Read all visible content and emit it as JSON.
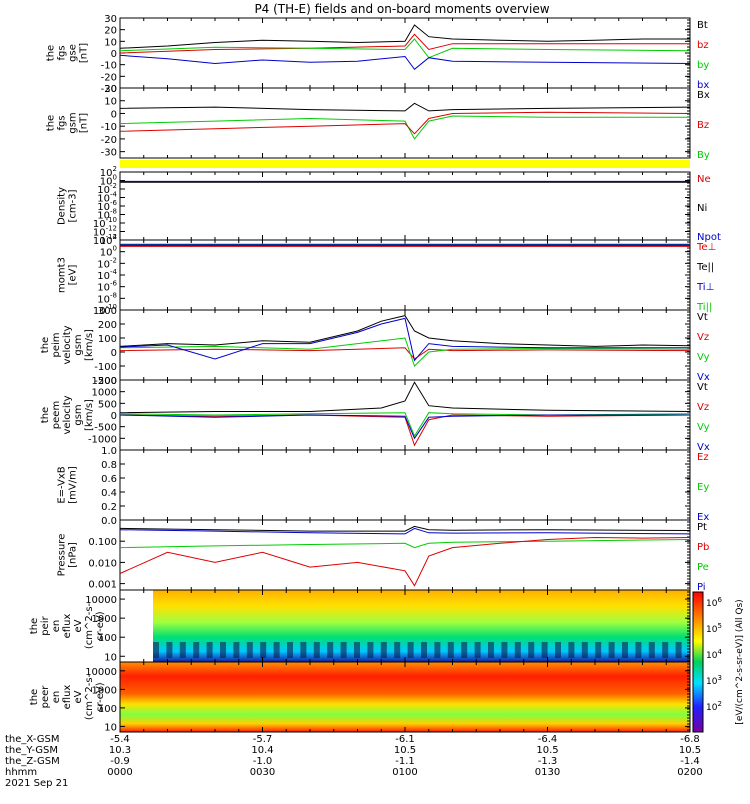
{
  "title": "P4 (TH-E) fields and on-board moments overview",
  "footer": {
    "row_labels": [
      "the_X-GSM",
      "the_Y-GSM",
      "the_Z-GSM",
      "hhmm",
      "2021 Sep 21"
    ],
    "columns": [
      {
        "values": [
          "-5.4",
          "10.3",
          "-0.9",
          "0000"
        ]
      },
      {
        "values": [
          "-5.7",
          "10.4",
          "-1.0",
          "0030"
        ]
      },
      {
        "values": [
          "-6.1",
          "10.5",
          "-1.1",
          "0100"
        ]
      },
      {
        "values": [
          "-6.4",
          "10.5",
          "-1.3",
          "0130"
        ]
      },
      {
        "values": [
          "-6.8",
          "10.5",
          "-1.4",
          "0200"
        ]
      }
    ]
  },
  "colorbar": {
    "title": "[eV/(cm^2-s-sr-eV)] (All Qs)",
    "ticks": [
      {
        "base": "10",
        "exp": "6"
      },
      {
        "base": "10",
        "exp": "5"
      },
      {
        "base": "10",
        "exp": "4"
      },
      {
        "base": "10",
        "exp": "3"
      },
      {
        "base": "10",
        "exp": "2"
      }
    ]
  },
  "chart_data": [
    {
      "id": "fgs_gse",
      "type": "line",
      "ylabel_lines": [
        "the",
        "fgs",
        "gse",
        "[nT]"
      ],
      "ylim": [
        -30,
        30
      ],
      "yticks": [
        "30",
        "20",
        "10",
        "0",
        "-10",
        "-20",
        "-30"
      ],
      "legend": [
        {
          "name": "Bt",
          "color": "#000000"
        },
        {
          "name": "bz",
          "color": "#dd0000"
        },
        {
          "name": "by",
          "color": "#00cc00"
        },
        {
          "name": "bx",
          "color": "#0000cc"
        }
      ],
      "series": [
        {
          "name": "Bt",
          "color": "#000000",
          "x": [
            0,
            10,
            20,
            30,
            40,
            50,
            60,
            62,
            65,
            70,
            80,
            90,
            100,
            110,
            120
          ],
          "y": [
            4,
            6,
            9,
            11,
            10,
            9,
            10,
            24,
            14,
            12,
            11,
            10,
            11,
            12,
            12
          ]
        },
        {
          "name": "bz",
          "color": "#dd0000",
          "x": [
            0,
            20,
            40,
            60,
            62,
            65,
            70,
            90,
            120
          ],
          "y": [
            0,
            3,
            4,
            6,
            16,
            3,
            8,
            8,
            8
          ]
        },
        {
          "name": "by",
          "color": "#00cc00",
          "x": [
            0,
            20,
            40,
            60,
            62,
            65,
            70,
            90,
            120
          ],
          "y": [
            2,
            5,
            4,
            3,
            12,
            -4,
            4,
            3,
            2
          ]
        },
        {
          "name": "bx",
          "color": "#0000cc",
          "x": [
            0,
            10,
            20,
            30,
            40,
            50,
            60,
            62,
            65,
            70,
            90,
            120
          ],
          "y": [
            -2,
            -5,
            -9,
            -6,
            -8,
            -7,
            -3,
            -14,
            -4,
            -7,
            -8,
            -9
          ]
        }
      ]
    },
    {
      "id": "fgs_gsm",
      "type": "line",
      "ylabel_lines": [
        "the",
        "fgs",
        "gsm",
        "[nT]"
      ],
      "ylim": [
        -35,
        20
      ],
      "yticks": [
        "20",
        "10",
        "0",
        "-10",
        "-20",
        "-30"
      ],
      "legend": [
        {
          "name": "Bx",
          "color": "#000000"
        },
        {
          "name": "Bz",
          "color": "#dd0000"
        },
        {
          "name": "By",
          "color": "#00cc00"
        }
      ],
      "series": [
        {
          "name": "Bx",
          "color": "#000000",
          "x": [
            0,
            20,
            40,
            60,
            62,
            65,
            70,
            90,
            120
          ],
          "y": [
            4,
            5,
            3,
            2,
            8,
            2,
            3,
            4,
            5
          ]
        },
        {
          "name": "By",
          "color": "#00cc00",
          "x": [
            0,
            20,
            40,
            60,
            62,
            65,
            70,
            90,
            120
          ],
          "y": [
            -8,
            -6,
            -4,
            -6,
            -20,
            -6,
            -2,
            -3,
            -3
          ]
        },
        {
          "name": "Bz",
          "color": "#dd0000",
          "x": [
            0,
            20,
            40,
            60,
            62,
            65,
            70,
            90,
            120
          ],
          "y": [
            -14,
            -12,
            -10,
            -8,
            -16,
            -4,
            0,
            1,
            0
          ]
        }
      ]
    },
    {
      "id": "density",
      "type": "line",
      "yscale": "log",
      "ylabel_lines": [
        "Density",
        "[cm-3]"
      ],
      "ylim": [
        1e-14,
        100.0
      ],
      "yticks": [
        {
          "base": "10",
          "exp": "2"
        },
        {
          "base": "10",
          "exp": "0"
        },
        {
          "base": "10",
          "exp": "-2"
        },
        {
          "base": "10",
          "exp": "-4"
        },
        {
          "base": "10",
          "exp": "-6"
        },
        {
          "base": "10",
          "exp": "-8"
        },
        {
          "base": "10",
          "exp": "-10"
        },
        {
          "base": "10",
          "exp": "-12"
        },
        {
          "base": "10",
          "exp": "-14"
        }
      ],
      "legend": [
        {
          "name": "Ne",
          "color": "#dd0000"
        },
        {
          "name": "Ni",
          "color": "#000000"
        },
        {
          "name": "Npot",
          "color": "#0000cc"
        }
      ],
      "series": [
        {
          "name": "Ne",
          "color": "#dd0000",
          "x": [
            0,
            120
          ],
          "y": [
            0.5,
            0.5
          ]
        },
        {
          "name": "Ni",
          "color": "#000000",
          "x": [
            0,
            120
          ],
          "y": [
            0.4,
            0.4
          ]
        },
        {
          "name": "Npot",
          "color": "#0000cc",
          "x": [
            0,
            120
          ],
          "y": [
            0.6,
            0.6
          ]
        }
      ]
    },
    {
      "id": "momt3",
      "type": "line",
      "yscale": "log",
      "ylabel_lines": [
        "momt3",
        "[eV]"
      ],
      "ylim": [
        1e-10,
        100.0
      ],
      "yticks": [
        {
          "base": "10",
          "exp": "2"
        },
        {
          "base": "10",
          "exp": "0"
        },
        {
          "base": "10",
          "exp": "-2"
        },
        {
          "base": "10",
          "exp": "-4"
        },
        {
          "base": "10",
          "exp": "-6"
        },
        {
          "base": "10",
          "exp": "-8"
        },
        {
          "base": "10",
          "exp": "-10"
        }
      ],
      "legend": [
        {
          "name": "Te⊥",
          "color": "#dd0000"
        },
        {
          "name": "Te||",
          "color": "#000000"
        },
        {
          "name": "Ti⊥",
          "color": "#0000cc"
        },
        {
          "name": "Ti||",
          "color": "#00cc00"
        }
      ],
      "series": [
        {
          "name": "Ti||",
          "color": "#00cc00",
          "x": [
            0,
            120
          ],
          "y": [
            20,
            20
          ]
        },
        {
          "name": "Te||",
          "color": "#000000",
          "x": [
            0,
            120
          ],
          "y": [
            12,
            12
          ]
        },
        {
          "name": "Ti⊥",
          "color": "#0000cc",
          "x": [
            0,
            120
          ],
          "y": [
            15,
            15
          ]
        },
        {
          "name": "Te⊥",
          "color": "#dd0000",
          "x": [
            0,
            120
          ],
          "y": [
            8,
            8
          ]
        }
      ]
    },
    {
      "id": "peim_velocity",
      "type": "line",
      "ylabel_lines": [
        "the",
        "peim",
        "velocity",
        "gsm",
        "[km/s]"
      ],
      "ylim": [
        -200,
        300
      ],
      "yticks": [
        "300",
        "200",
        "100",
        "0",
        "-100",
        "-200"
      ],
      "legend": [
        {
          "name": "Vt",
          "color": "#000000"
        },
        {
          "name": "Vz",
          "color": "#dd0000"
        },
        {
          "name": "Vy",
          "color": "#00cc00"
        },
        {
          "name": "Vx",
          "color": "#0000cc"
        }
      ],
      "series": [
        {
          "name": "Vt",
          "color": "#000000",
          "x": [
            0,
            10,
            20,
            30,
            40,
            50,
            55,
            60,
            62,
            65,
            70,
            80,
            90,
            100,
            110,
            120
          ],
          "y": [
            40,
            60,
            50,
            80,
            70,
            150,
            220,
            260,
            150,
            100,
            80,
            60,
            50,
            40,
            50,
            45
          ]
        },
        {
          "name": "Vz",
          "color": "#dd0000",
          "x": [
            0,
            20,
            40,
            60,
            62,
            65,
            70,
            90,
            120
          ],
          "y": [
            10,
            20,
            10,
            30,
            -50,
            20,
            10,
            15,
            10
          ]
        },
        {
          "name": "Vy",
          "color": "#00cc00",
          "x": [
            0,
            20,
            40,
            60,
            62,
            65,
            70,
            90,
            120
          ],
          "y": [
            30,
            40,
            20,
            100,
            -100,
            0,
            20,
            25,
            20
          ]
        },
        {
          "name": "Vx",
          "color": "#0000cc",
          "x": [
            0,
            10,
            20,
            30,
            40,
            50,
            55,
            60,
            62,
            65,
            70,
            90,
            120
          ],
          "y": [
            35,
            50,
            -50,
            60,
            60,
            140,
            200,
            240,
            -60,
            60,
            40,
            30,
            30
          ]
        }
      ]
    },
    {
      "id": "peem_velocity",
      "type": "line",
      "ylabel_lines": [
        "the",
        "peem",
        "velocity",
        "gsm",
        "[km/s]"
      ],
      "ylim": [
        -1500,
        1500
      ],
      "yticks": [
        "1500",
        "1000",
        "500",
        "0",
        "-500",
        "-1000"
      ],
      "legend": [
        {
          "name": "Vt",
          "color": "#000000"
        },
        {
          "name": "Vz",
          "color": "#dd0000"
        },
        {
          "name": "Vy",
          "color": "#00cc00"
        },
        {
          "name": "Vx",
          "color": "#0000cc"
        }
      ],
      "series": [
        {
          "name": "Vt",
          "color": "#000000",
          "x": [
            0,
            20,
            40,
            55,
            60,
            62,
            65,
            70,
            90,
            120
          ],
          "y": [
            100,
            150,
            150,
            300,
            600,
            1400,
            400,
            300,
            200,
            150
          ]
        },
        {
          "name": "Vz",
          "color": "#dd0000",
          "x": [
            0,
            20,
            40,
            60,
            62,
            65,
            70,
            90,
            120
          ],
          "y": [
            0,
            -50,
            0,
            -100,
            -1300,
            -200,
            0,
            -50,
            0
          ]
        },
        {
          "name": "Vy",
          "color": "#00cc00",
          "x": [
            0,
            20,
            40,
            60,
            62,
            65,
            70,
            90,
            120
          ],
          "y": [
            50,
            0,
            50,
            100,
            -900,
            100,
            50,
            0,
            50
          ]
        },
        {
          "name": "Vx",
          "color": "#0000cc",
          "x": [
            0,
            20,
            40,
            60,
            62,
            65,
            70,
            90,
            120
          ],
          "y": [
            0,
            -100,
            0,
            -50,
            -1000,
            -100,
            -50,
            0,
            0
          ]
        }
      ]
    },
    {
      "id": "efield",
      "type": "line",
      "ylabel_lines": [
        "E=-VxB",
        "[mV/m]"
      ],
      "ylim": [
        0,
        1
      ],
      "yticks": [
        "1.0",
        "0.8",
        "0.6",
        "0.4",
        "0.2",
        "0.0"
      ],
      "legend": [
        {
          "name": "Ez",
          "color": "#dd0000"
        },
        {
          "name": "Ey",
          "color": "#00cc00"
        },
        {
          "name": "Ex",
          "color": "#0000cc"
        }
      ],
      "series": []
    },
    {
      "id": "pressure",
      "type": "line",
      "yscale": "log",
      "ylabel_lines": [
        "Pressure",
        "[nPa]"
      ],
      "ylim": [
        0.0005,
        1
      ],
      "yticks": [
        {
          "label": "0.100",
          "value": 0.1
        },
        {
          "label": "0.010",
          "value": 0.01
        },
        {
          "label": "0.001",
          "value": 0.001
        }
      ],
      "legend": [
        {
          "name": "Pt",
          "color": "#000000"
        },
        {
          "name": "Pb",
          "color": "#dd0000"
        },
        {
          "name": "Pe",
          "color": "#00cc00"
        },
        {
          "name": "Pi",
          "color": "#0000cc"
        }
      ],
      "series": [
        {
          "name": "Pt",
          "color": "#000000",
          "x": [
            0,
            20,
            40,
            60,
            62,
            65,
            70,
            90,
            120
          ],
          "y": [
            0.4,
            0.35,
            0.3,
            0.3,
            0.5,
            0.35,
            0.33,
            0.35,
            0.32
          ]
        },
        {
          "name": "Pi",
          "color": "#0000cc",
          "x": [
            0,
            20,
            40,
            60,
            62,
            65,
            70,
            90,
            120
          ],
          "y": [
            0.35,
            0.3,
            0.25,
            0.22,
            0.4,
            0.25,
            0.24,
            0.25,
            0.22
          ]
        },
        {
          "name": "Pe",
          "color": "#00cc00",
          "x": [
            0,
            20,
            40,
            60,
            62,
            65,
            70,
            90,
            120
          ],
          "y": [
            0.05,
            0.06,
            0.07,
            0.08,
            0.05,
            0.08,
            0.09,
            0.1,
            0.12
          ]
        },
        {
          "name": "Pb",
          "color": "#dd0000",
          "x": [
            0,
            10,
            20,
            30,
            40,
            50,
            60,
            62,
            65,
            70,
            80,
            90,
            100,
            110,
            120
          ],
          "y": [
            0.003,
            0.03,
            0.01,
            0.03,
            0.006,
            0.01,
            0.004,
            0.0008,
            0.02,
            0.05,
            0.08,
            0.12,
            0.15,
            0.14,
            0.15
          ]
        }
      ]
    },
    {
      "id": "peir_eflux",
      "type": "heatmap",
      "ylabel_lines": [
        "the",
        "peir",
        "en",
        "eflux",
        "eV",
        "(cm^2-s-",
        "sr-eV)"
      ],
      "yscale": "log",
      "ylim": [
        5,
        30000
      ],
      "yticks": [
        "10000",
        "1000",
        "100",
        "10"
      ]
    },
    {
      "id": "peer_eflux",
      "type": "heatmap",
      "ylabel_lines": [
        "the",
        "peer",
        "en",
        "eflux",
        "eV",
        "(cm^2-s-",
        "sr-eV)"
      ],
      "yscale": "log",
      "ylim": [
        5,
        30000
      ],
      "yticks": [
        "10000",
        "1000",
        "100",
        "10"
      ]
    }
  ]
}
